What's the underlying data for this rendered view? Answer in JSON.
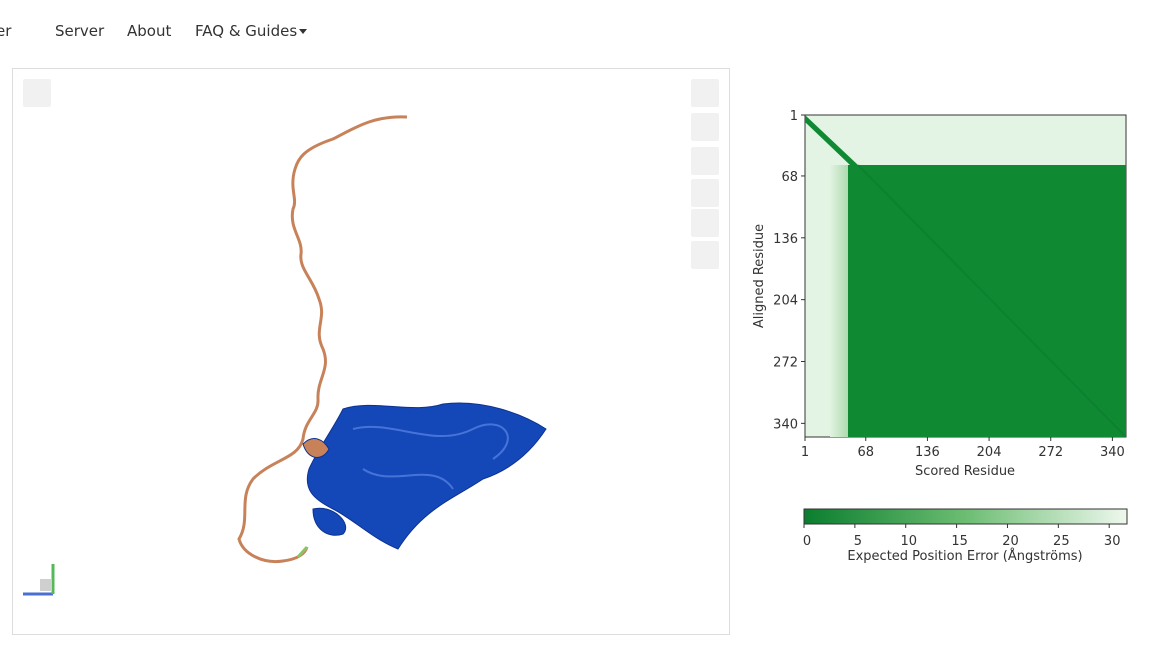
{
  "nav": {
    "brand_fragment": "er",
    "items": [
      "Server",
      "About",
      "FAQ & Guides"
    ]
  },
  "pae_plot": {
    "x_label": "Scored Residue",
    "y_label": "Aligned Residue",
    "xlim": [
      1,
      355
    ],
    "ylim": [
      1,
      355
    ],
    "xticks": [
      1,
      68,
      136,
      204,
      272,
      340
    ],
    "yticks": [
      1,
      68,
      136,
      204,
      272,
      340
    ],
    "colorbar": {
      "label": "Expected Position Error (Ångströms)",
      "lim": [
        0,
        31.75
      ],
      "ticks": [
        0,
        5,
        10,
        15,
        20,
        25,
        30
      ]
    }
  }
}
